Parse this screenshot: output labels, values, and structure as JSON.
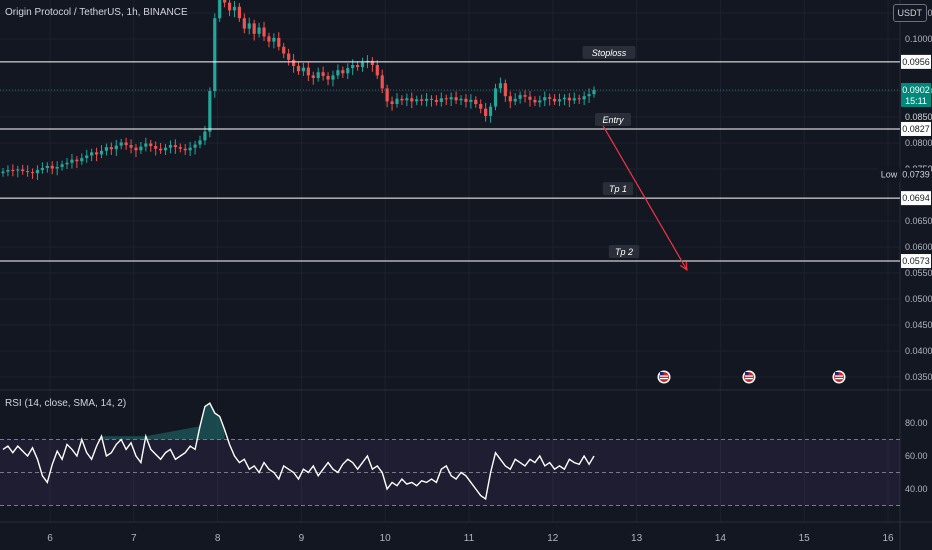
{
  "header": {
    "symbol_title": "Origin Protocol / TetherUS, 1h, BINANCE",
    "currency": "USDT"
  },
  "rsi": {
    "title": "RSI (14, close, SMA, 14, 2)",
    "ticks": [
      "80.00",
      "60.00",
      "40.00"
    ],
    "band_upper": 70,
    "band_mid": 50,
    "band_lower": 30,
    "series": [
      64,
      66,
      62,
      66,
      63,
      60,
      65,
      58,
      48,
      44,
      55,
      63,
      58,
      67,
      64,
      60,
      70,
      62,
      58,
      66,
      72,
      60,
      62,
      67,
      70,
      64,
      68,
      60,
      56,
      72,
      64,
      61,
      58,
      62,
      64,
      58,
      60,
      62,
      66,
      64,
      78,
      90,
      92,
      86,
      84,
      76,
      67,
      60,
      56,
      58,
      52,
      54,
      50,
      56,
      52,
      50,
      46,
      54,
      52,
      50,
      46,
      52,
      50,
      54,
      48,
      52,
      56,
      52,
      50,
      55,
      58,
      56,
      52,
      56,
      60,
      52,
      54,
      50,
      40,
      44,
      42,
      46,
      43,
      44,
      42,
      45,
      44,
      46,
      44,
      52,
      54,
      48,
      46,
      50,
      48,
      44,
      40,
      36,
      34,
      50,
      62,
      58,
      54,
      52,
      58,
      56,
      54,
      58,
      56,
      60,
      54,
      56,
      52,
      54,
      52,
      58,
      56,
      55,
      60,
      55,
      60
    ]
  },
  "price_axis": {
    "ticks": [
      "0.1050",
      "0.1000",
      "0.0900",
      "0.0850",
      "0.0800",
      "0.0750",
      "0.0650",
      "0.0600",
      "0.0550",
      "0.0500",
      "0.0450",
      "0.0400",
      "0.0350"
    ]
  },
  "time_axis": {
    "labels": [
      "6",
      "7",
      "8",
      "9",
      "10",
      "11",
      "12",
      "13",
      "14",
      "15",
      "16"
    ]
  },
  "levels": {
    "stoploss": {
      "label": "Stoploss",
      "value": "0.0956"
    },
    "entry": {
      "label": "Entry",
      "value": "0.0827"
    },
    "tp1": {
      "label": "Tp 1",
      "value": "0.0694"
    },
    "tp2": {
      "label": "Tp 2",
      "value": "0.0573"
    }
  },
  "badges": {
    "last_price": "0.0902",
    "countdown": "15:11",
    "low_label": "Low",
    "low_value": "0.0739",
    "value_0850": "0.0850",
    "value_0750": "0.0750"
  },
  "colors": {
    "up": "#26a69a",
    "down": "#ef5350",
    "arrow": "#f23645",
    "rsi_line": "#ffffff",
    "last_price_bg": "#00897b"
  },
  "chart_data": {
    "type": "candlestick",
    "title": "Origin Protocol / TetherUS, 1h, BINANCE",
    "x_range": [
      6,
      16
    ],
    "y_range": [
      0.0325,
      0.1075
    ],
    "closes": [
      0.0745,
      0.0748,
      0.0747,
      0.0749,
      0.0746,
      0.0744,
      0.0742,
      0.0748,
      0.0752,
      0.0756,
      0.0751,
      0.0754,
      0.0759,
      0.0762,
      0.0768,
      0.0765,
      0.0771,
      0.0776,
      0.0782,
      0.0778,
      0.0785,
      0.0792,
      0.0788,
      0.0795,
      0.0801,
      0.0796,
      0.0791,
      0.0786,
      0.0793,
      0.0799,
      0.0794,
      0.0789,
      0.0786,
      0.0791,
      0.0796,
      0.0792,
      0.0789,
      0.0786,
      0.0791,
      0.0797,
      0.0805,
      0.0822,
      0.09,
      0.104,
      0.1075,
      0.107,
      0.1055,
      0.1062,
      0.104,
      0.102,
      0.103,
      0.101,
      0.1022,
      0.1005,
      0.0995,
      0.1002,
      0.0985,
      0.0972,
      0.096,
      0.0948,
      0.0938,
      0.0945,
      0.093,
      0.0925,
      0.0936,
      0.0929,
      0.0922,
      0.093,
      0.094,
      0.0934,
      0.0944,
      0.095,
      0.0946,
      0.0955,
      0.0958,
      0.095,
      0.093,
      0.0905,
      0.088,
      0.0875,
      0.0885,
      0.0882,
      0.0886,
      0.088,
      0.0884,
      0.0881,
      0.0885,
      0.0883,
      0.0879,
      0.0886,
      0.0884,
      0.0888,
      0.0882,
      0.0885,
      0.0879,
      0.0883,
      0.0875,
      0.0866,
      0.0852,
      0.087,
      0.0905,
      0.0915,
      0.089,
      0.088,
      0.0885,
      0.0892,
      0.0889,
      0.0883,
      0.0878,
      0.0882,
      0.0888,
      0.0885,
      0.088,
      0.0884,
      0.0887,
      0.0882,
      0.0886,
      0.0884,
      0.089,
      0.0894,
      0.0902
    ],
    "levels": [
      0.0956,
      0.0827,
      0.0694,
      0.0573
    ],
    "projection": {
      "from": [
        12.6,
        0.0833
      ],
      "to": [
        13.6,
        0.0556
      ]
    },
    "rsi_range": [
      20,
      100
    ]
  }
}
